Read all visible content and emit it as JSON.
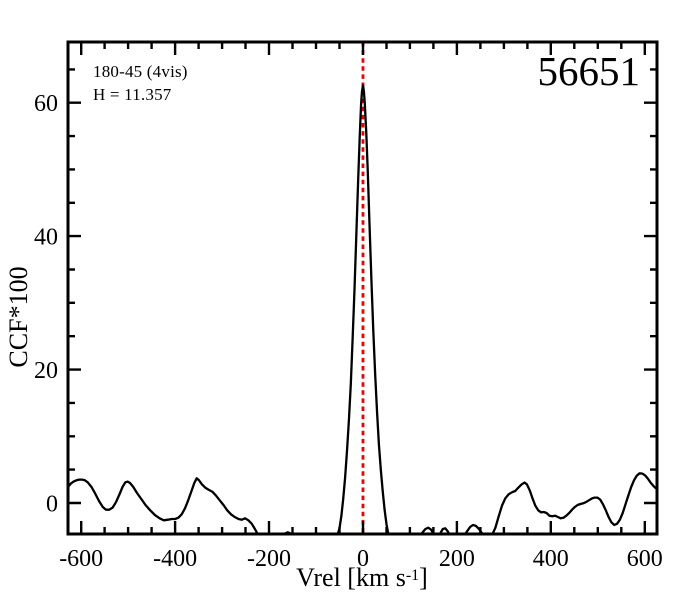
{
  "annotations": {
    "field": "180-45 (4vis)",
    "hmag": "H = 11.357",
    "star_id": "56651"
  },
  "chart_data": {
    "type": "line",
    "title": "",
    "xlabel_main": "Vrel [km s",
    "xlabel_sup": "-1",
    "xlabel_close": "]",
    "ylabel": "CCF*100",
    "x_range": [
      -628,
      626
    ],
    "y_range": [
      -4.65,
      69.1
    ],
    "x_major_ticks": [
      -600,
      -400,
      -200,
      0,
      200,
      400,
      600
    ],
    "x_minor_ticks": [
      -550,
      -500,
      -450,
      -350,
      -300,
      -250,
      -150,
      -100,
      -50,
      50,
      100,
      150,
      250,
      300,
      350,
      450,
      500,
      550
    ],
    "y_major_ticks": [
      0,
      20,
      40,
      60
    ],
    "y_minor_ticks": [
      5,
      10,
      15,
      25,
      30,
      35,
      45,
      50,
      55,
      65
    ],
    "grid": false,
    "legend": null,
    "reference_line": {
      "x": 0,
      "color": "#ee0000",
      "style": "dotted"
    },
    "colors": {
      "curve": "#000000",
      "frame": "#000000",
      "background": "#ffffff"
    },
    "series": [
      {
        "name": "CCF",
        "points": [
          [
            -628,
            2.4
          ],
          [
            -622,
            2.9
          ],
          [
            -616,
            3.2
          ],
          [
            -610,
            3.4
          ],
          [
            -604,
            3.5
          ],
          [
            -598,
            3.5
          ],
          [
            -592,
            3.4
          ],
          [
            -586,
            3.1
          ],
          [
            -578,
            2.4
          ],
          [
            -570,
            1.4
          ],
          [
            -562,
            0.3
          ],
          [
            -554,
            -0.6
          ],
          [
            -547,
            -1.0
          ],
          [
            -540,
            -1.0
          ],
          [
            -533,
            -0.7
          ],
          [
            -526,
            0.1
          ],
          [
            -519,
            1.2
          ],
          [
            -512,
            2.4
          ],
          [
            -506,
            3.1
          ],
          [
            -501,
            3.2
          ],
          [
            -496,
            3.0
          ],
          [
            -489,
            2.4
          ],
          [
            -481,
            1.5
          ],
          [
            -472,
            0.6
          ],
          [
            -463,
            -0.3
          ],
          [
            -453,
            -1.1
          ],
          [
            -443,
            -1.8
          ],
          [
            -433,
            -2.3
          ],
          [
            -424,
            -2.6
          ],
          [
            -415,
            -2.5
          ],
          [
            -407,
            -2.4
          ],
          [
            -400,
            -2.4
          ],
          [
            -393,
            -2.2
          ],
          [
            -386,
            -1.7
          ],
          [
            -379,
            -0.8
          ],
          [
            -372,
            0.4
          ],
          [
            -365,
            1.8
          ],
          [
            -359,
            3.0
          ],
          [
            -354,
            3.7
          ],
          [
            -349,
            3.4
          ],
          [
            -343,
            2.8
          ],
          [
            -336,
            2.3
          ],
          [
            -329,
            2.0
          ],
          [
            -321,
            1.7
          ],
          [
            -313,
            1.1
          ],
          [
            -305,
            0.4
          ],
          [
            -297,
            -0.3
          ],
          [
            -289,
            -1.1
          ],
          [
            -281,
            -1.7
          ],
          [
            -273,
            -2.1
          ],
          [
            -265,
            -2.4
          ],
          [
            -258,
            -2.5
          ],
          [
            -251,
            -2.3
          ],
          [
            -244,
            -2.6
          ],
          [
            -237,
            -3.1
          ],
          [
            -230,
            -3.9
          ],
          [
            -223,
            -4.8
          ],
          [
            -216,
            -5.4
          ],
          [
            -209,
            -5.7
          ],
          [
            -202,
            -5.4
          ],
          [
            -195,
            -5.0
          ],
          [
            -188,
            -4.7
          ],
          [
            -181,
            -4.6
          ],
          [
            -174,
            -4.9
          ],
          [
            -167,
            -4.6
          ],
          [
            -160,
            -4.4
          ],
          [
            -153,
            -4.6
          ],
          [
            -146,
            -5.0
          ],
          [
            -139,
            -5.5
          ],
          [
            -132,
            -5.8
          ],
          [
            -125,
            -5.9
          ],
          [
            -118,
            -5.6
          ],
          [
            -111,
            -5.1
          ],
          [
            -104,
            -4.8
          ],
          [
            -97,
            -5.2
          ],
          [
            -90,
            -5.7
          ],
          [
            -83,
            -6.1
          ],
          [
            -76,
            -6.3
          ],
          [
            -69,
            -6.2
          ],
          [
            -62,
            -5.9
          ],
          [
            -56,
            -5.2
          ],
          [
            -50,
            -3.8
          ],
          [
            -46,
            -1.9
          ],
          [
            -42,
            0.6
          ],
          [
            -38,
            3.8
          ],
          [
            -34,
            7.8
          ],
          [
            -30,
            12.4
          ],
          [
            -26,
            17.8
          ],
          [
            -22,
            24.5
          ],
          [
            -18,
            32.0
          ],
          [
            -14,
            40.5
          ],
          [
            -10,
            49.0
          ],
          [
            -7,
            54.8
          ],
          [
            -4,
            59.8
          ],
          [
            -2,
            61.7
          ],
          [
            0,
            62.6
          ],
          [
            2,
            61.7
          ],
          [
            4,
            59.9
          ],
          [
            7,
            55.4
          ],
          [
            10,
            50.0
          ],
          [
            14,
            41.8
          ],
          [
            18,
            33.5
          ],
          [
            22,
            25.8
          ],
          [
            26,
            19.2
          ],
          [
            30,
            13.5
          ],
          [
            34,
            8.8
          ],
          [
            38,
            5.0
          ],
          [
            42,
            1.8
          ],
          [
            46,
            -1.0
          ],
          [
            50,
            -3.2
          ],
          [
            54,
            -4.6
          ],
          [
            58,
            -5.6
          ],
          [
            64,
            -6.6
          ],
          [
            72,
            -7.2
          ],
          [
            80,
            -7.4
          ],
          [
            88,
            -7.2
          ],
          [
            96,
            -6.7
          ],
          [
            104,
            -6.2
          ],
          [
            112,
            -5.6
          ],
          [
            120,
            -5.0
          ],
          [
            127,
            -4.4
          ],
          [
            133,
            -3.9
          ],
          [
            139,
            -3.7
          ],
          [
            145,
            -4.0
          ],
          [
            150,
            -4.6
          ],
          [
            155,
            -5.2
          ],
          [
            160,
            -5.1
          ],
          [
            165,
            -4.5
          ],
          [
            170,
            -3.9
          ],
          [
            175,
            -3.8
          ],
          [
            180,
            -4.2
          ],
          [
            186,
            -4.9
          ],
          [
            193,
            -5.5
          ],
          [
            200,
            -5.8
          ],
          [
            207,
            -5.6
          ],
          [
            214,
            -5.1
          ],
          [
            221,
            -4.3
          ],
          [
            228,
            -3.6
          ],
          [
            234,
            -3.3
          ],
          [
            240,
            -3.4
          ],
          [
            247,
            -3.9
          ],
          [
            254,
            -4.6
          ],
          [
            261,
            -5.1
          ],
          [
            268,
            -5.3
          ],
          [
            275,
            -4.8
          ],
          [
            282,
            -3.7
          ],
          [
            289,
            -2.0
          ],
          [
            296,
            -0.4
          ],
          [
            303,
            0.7
          ],
          [
            310,
            1.3
          ],
          [
            317,
            1.6
          ],
          [
            324,
            1.8
          ],
          [
            331,
            2.3
          ],
          [
            338,
            2.8
          ],
          [
            344,
            3.05
          ],
          [
            349,
            2.8
          ],
          [
            355,
            1.9
          ],
          [
            361,
            0.7
          ],
          [
            367,
            -0.4
          ],
          [
            373,
            -1.1
          ],
          [
            379,
            -1.4
          ],
          [
            385,
            -1.35
          ],
          [
            391,
            -1.5
          ],
          [
            397,
            -1.9
          ],
          [
            403,
            -2.0
          ],
          [
            409,
            -1.9
          ],
          [
            415,
            -2.1
          ],
          [
            421,
            -2.3
          ],
          [
            427,
            -2.2
          ],
          [
            433,
            -1.9
          ],
          [
            439,
            -1.5
          ],
          [
            445,
            -1.0
          ],
          [
            451,
            -0.6
          ],
          [
            457,
            -0.3
          ],
          [
            463,
            -0.15
          ],
          [
            469,
            -0.05
          ],
          [
            475,
            0.15
          ],
          [
            481,
            0.4
          ],
          [
            487,
            0.65
          ],
          [
            493,
            0.8
          ],
          [
            499,
            0.8
          ],
          [
            505,
            0.5
          ],
          [
            511,
            -0.2
          ],
          [
            517,
            -1.1
          ],
          [
            523,
            -2.1
          ],
          [
            529,
            -2.9
          ],
          [
            535,
            -3.3
          ],
          [
            541,
            -3.1
          ],
          [
            547,
            -2.5
          ],
          [
            553,
            -1.5
          ],
          [
            559,
            -0.2
          ],
          [
            565,
            1.1
          ],
          [
            571,
            2.4
          ],
          [
            577,
            3.4
          ],
          [
            583,
            4.1
          ],
          [
            589,
            4.45
          ],
          [
            595,
            4.4
          ],
          [
            601,
            4.1
          ],
          [
            607,
            3.6
          ],
          [
            613,
            3.0
          ],
          [
            619,
            2.5
          ],
          [
            626,
            2.05
          ]
        ]
      }
    ]
  }
}
